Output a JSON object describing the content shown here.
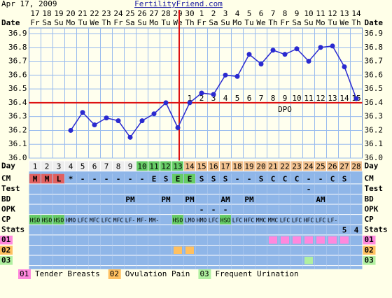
{
  "header": {
    "date": "Apr 17, 2009",
    "site": "FertilityFriend.com"
  },
  "chart_data": {
    "type": "line",
    "date_label": "Date",
    "dates": [
      17,
      18,
      19,
      20,
      21,
      22,
      23,
      24,
      25,
      26,
      27,
      28,
      29,
      30,
      1,
      2,
      3,
      4,
      5,
      6,
      7,
      8,
      9,
      10,
      11,
      12,
      13,
      14
    ],
    "weekdays": [
      "Fr",
      "Sa",
      "Su",
      "Mo",
      "Tu",
      "We",
      "Th",
      "Fr",
      "Sa",
      "Su",
      "Mo",
      "Tu",
      "We",
      "Th",
      "Fr",
      "Sa",
      "Su",
      "Mo",
      "Tu",
      "We",
      "Th",
      "Fr",
      "Sa",
      "Su",
      "Mo",
      "Tu",
      "We",
      "Th"
    ],
    "values": [
      null,
      null,
      null,
      36.2,
      36.33,
      36.24,
      36.29,
      36.27,
      36.15,
      36.27,
      36.32,
      36.4,
      36.22,
      36.4,
      36.47,
      36.46,
      36.6,
      36.59,
      36.75,
      36.68,
      36.78,
      36.75,
      36.79,
      36.7,
      36.8,
      36.81,
      36.66,
      36.43
    ],
    "color": "#2a2ad0",
    "ylim": [
      36.0,
      36.9
    ],
    "yticks": [
      {
        "value": 36.0,
        "label": "36.0"
      },
      36.1,
      36.2,
      36.3,
      36.4,
      36.5,
      36.6,
      36.7,
      36.8,
      36.9
    ],
    "grid": true,
    "coverline": 36.4,
    "ovulation_day": 13,
    "marker_color": "#dd1111",
    "dpo_label": "DPO",
    "dpo": [
      null,
      null,
      null,
      null,
      null,
      null,
      null,
      null,
      null,
      null,
      null,
      null,
      null,
      1,
      2,
      3,
      4,
      5,
      6,
      7,
      8,
      9,
      10,
      11,
      12,
      13,
      14,
      15
    ]
  },
  "table": {
    "day_label": "Day",
    "days": [
      1,
      2,
      3,
      4,
      5,
      6,
      7,
      8,
      9,
      10,
      11,
      12,
      13,
      14,
      15,
      16,
      17,
      18,
      19,
      20,
      21,
      22,
      23,
      24,
      25,
      26,
      27,
      28
    ],
    "day_colors": [
      "#eeeeee",
      "#eeeeee",
      "#eeeeee",
      "#eeeeee",
      "#eeeeee",
      "#eeeeee",
      "#eeeeee",
      "#eeeeee",
      "#eeeeee",
      "#66cc66",
      "#66cc66",
      "#66cc66",
      "#66cc66",
      "#f2c290",
      "#f2c290",
      "#f2c290",
      "#f2c290",
      "#f2c290",
      "#f2c290",
      "#f2c290",
      "#f2c290",
      "#f2c290",
      "#f2c290",
      "#f2c290",
      "#f2c290",
      "#f2c290",
      "#f2c290",
      "#f2c290"
    ],
    "rows": [
      {
        "label": "CM",
        "cells": [
          "M",
          "M",
          "L",
          "*",
          "-",
          "-",
          "-",
          "-",
          "-",
          "-",
          "E",
          "S",
          "E",
          "E",
          "S",
          "S",
          "S",
          "-",
          "-",
          "S",
          "C",
          "C",
          "C",
          "-",
          "-",
          "C",
          "S",
          null
        ],
        "colors": [
          "#e06060",
          "#e06060",
          "#e06060",
          null,
          null,
          null,
          null,
          null,
          null,
          null,
          null,
          null,
          "#66cc66",
          "#66cc66",
          null,
          null,
          null,
          null,
          null,
          null,
          null,
          null,
          null,
          null,
          null,
          null,
          null,
          null
        ]
      },
      {
        "label": "Test",
        "cells": [
          null,
          null,
          null,
          null,
          null,
          null,
          null,
          null,
          null,
          null,
          null,
          null,
          null,
          null,
          null,
          null,
          null,
          null,
          null,
          null,
          null,
          null,
          null,
          "-",
          null,
          null,
          null,
          null
        ]
      },
      {
        "label": "BD",
        "cells": [
          null,
          null,
          null,
          null,
          null,
          null,
          null,
          null,
          "PM",
          null,
          null,
          "PM",
          null,
          "PM",
          null,
          null,
          "AM",
          null,
          "PM",
          null,
          null,
          null,
          null,
          null,
          "AM",
          null,
          null,
          null
        ]
      },
      {
        "label": "OPK",
        "cells": [
          null,
          null,
          null,
          null,
          null,
          null,
          null,
          null,
          null,
          null,
          null,
          null,
          null,
          null,
          "-",
          "-",
          "-",
          null,
          null,
          null,
          null,
          null,
          null,
          null,
          null,
          null,
          null,
          null
        ]
      },
      {
        "label": "CP",
        "cells": [
          "HSO",
          "HSO",
          "HSO",
          "HMO",
          "LFC",
          "MFC",
          "LFC",
          "MFC",
          "LF-",
          "MF-",
          "MM-",
          null,
          "HSO",
          "LMO",
          "HMO",
          "LFC",
          "HSO",
          "LFC",
          "HFC",
          "MMC",
          "MMC",
          "LFC",
          "LFC",
          "HFC",
          "LFC",
          "LF-",
          null,
          null
        ],
        "colors": [
          "#66cc66",
          "#66cc66",
          "#66cc66",
          null,
          null,
          null,
          null,
          null,
          null,
          null,
          null,
          null,
          "#66cc66",
          null,
          null,
          null,
          "#66cc66",
          null,
          null,
          null,
          null,
          null,
          null,
          null,
          null,
          null,
          null,
          null
        ]
      },
      {
        "label": "Stats",
        "cells": [
          null,
          null,
          null,
          null,
          null,
          null,
          null,
          null,
          null,
          null,
          null,
          null,
          null,
          null,
          null,
          null,
          null,
          null,
          null,
          null,
          null,
          null,
          null,
          null,
          null,
          null,
          "5",
          "4"
        ]
      }
    ],
    "symptoms": [
      {
        "code": "01",
        "name": "Tender Breasts",
        "color": "#ff88dd",
        "days": [
          21,
          22,
          23,
          24,
          25,
          26,
          27
        ]
      },
      {
        "code": "02",
        "name": "Ovulation Pain",
        "color": "#ffc060",
        "days": [
          13,
          14
        ]
      },
      {
        "code": "03",
        "name": "Frequent Urination",
        "color": "#b0f0a0",
        "days": [
          24
        ]
      }
    ]
  }
}
